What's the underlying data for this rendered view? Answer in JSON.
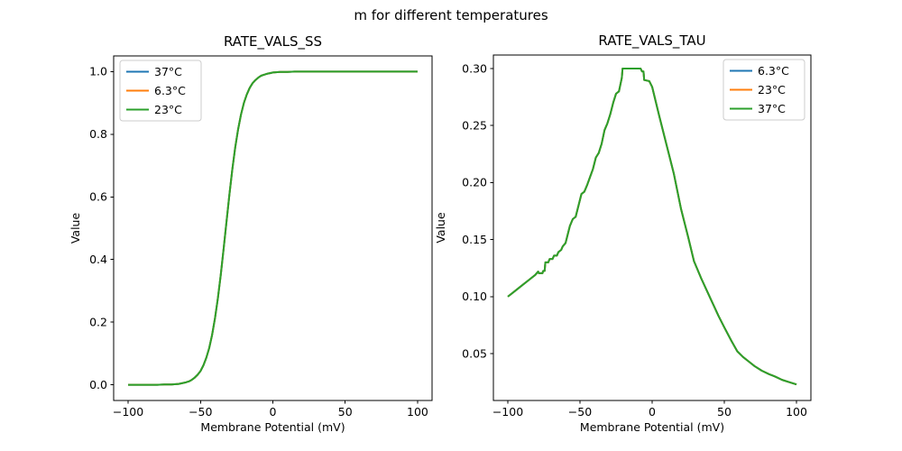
{
  "figure": {
    "suptitle": "m for different temperatures",
    "background_color": "#ffffff",
    "text_color": "#000000"
  },
  "chart_data": [
    {
      "type": "line",
      "title": "RATE_VALS_SS",
      "xlabel": "Membrane Potential (mV)",
      "ylabel": "Value",
      "xlim": [
        -110,
        110
      ],
      "ylim": [
        -0.05,
        1.05
      ],
      "xticks": {
        "values": [
          -100,
          -50,
          0,
          50,
          100
        ],
        "labels": [
          "−100",
          "−50",
          "0",
          "50",
          "100"
        ]
      },
      "yticks": {
        "values": [
          0.0,
          0.2,
          0.4,
          0.6,
          0.8,
          1.0
        ],
        "labels": [
          "0.0",
          "0.2",
          "0.4",
          "0.6",
          "0.8",
          "1.0"
        ]
      },
      "grid": false,
      "legend": {
        "position": "upper-left",
        "entries": [
          {
            "label": "37°C",
            "color": "#1f77b4"
          },
          {
            "label": "6.3°C",
            "color": "#ff7f0e"
          },
          {
            "label": "23°C",
            "color": "#2ca02c"
          }
        ]
      },
      "overlap_note": "all three temperature curves coincide exactly; only the last-drawn green curve is visible",
      "x": [
        -100,
        -95,
        -90,
        -85,
        -80,
        -75,
        -70,
        -65,
        -60,
        -58,
        -56,
        -54,
        -52,
        -50,
        -48,
        -46,
        -44,
        -42,
        -40,
        -38,
        -36,
        -34,
        -32,
        -30,
        -28,
        -26,
        -24,
        -22,
        -20,
        -18,
        -16,
        -14,
        -12,
        -10,
        -8,
        -6,
        -4,
        -2,
        0,
        5,
        10,
        15,
        20,
        30,
        40,
        50,
        60,
        70,
        80,
        90,
        100
      ],
      "y_shared": [
        0.0,
        0.0,
        0.0,
        0.0,
        0.0,
        0.001,
        0.001,
        0.003,
        0.008,
        0.011,
        0.016,
        0.023,
        0.032,
        0.044,
        0.062,
        0.086,
        0.117,
        0.159,
        0.212,
        0.276,
        0.351,
        0.435,
        0.522,
        0.608,
        0.688,
        0.758,
        0.816,
        0.863,
        0.9,
        0.927,
        0.948,
        0.963,
        0.973,
        0.981,
        0.987,
        0.99,
        0.993,
        0.995,
        0.997,
        0.999,
        0.999,
        1.0,
        1.0,
        1.0,
        1.0,
        1.0,
        1.0,
        1.0,
        1.0,
        1.0,
        1.0
      ],
      "series": [
        {
          "name": "37°C",
          "color": "#1f77b4",
          "y": "shared"
        },
        {
          "name": "6.3°C",
          "color": "#ff7f0e",
          "y": "shared"
        },
        {
          "name": "23°C",
          "color": "#2ca02c",
          "y": "shared"
        }
      ]
    },
    {
      "type": "line",
      "title": "RATE_VALS_TAU",
      "xlabel": "Membrane Potential (mV)",
      "ylabel": "Value",
      "xlim": [
        -110,
        110
      ],
      "ylim": [
        0.0089,
        0.3119
      ],
      "xticks": {
        "values": [
          -100,
          -50,
          0,
          50,
          100
        ],
        "labels": [
          "−100",
          "−50",
          "0",
          "50",
          "100"
        ]
      },
      "yticks": {
        "values": [
          0.05,
          0.1,
          0.15,
          0.2,
          0.25,
          0.3
        ],
        "labels": [
          "0.05",
          "0.10",
          "0.15",
          "0.20",
          "0.25",
          "0.30"
        ]
      },
      "grid": false,
      "legend": {
        "position": "upper-right",
        "entries": [
          {
            "label": "6.3°C",
            "color": "#1f77b4"
          },
          {
            "label": "23°C",
            "color": "#ff7f0e"
          },
          {
            "label": "37°C",
            "color": "#2ca02c"
          }
        ]
      },
      "overlap_note": "all three temperature curves coincide exactly; only the last-drawn green curve is visible",
      "x": [
        -100,
        -95,
        -90,
        -85,
        -81,
        -79,
        -78.5,
        -76,
        -75.5,
        -74.5,
        -74,
        -72,
        -71,
        -69,
        -68,
        -66,
        -65,
        -63,
        -62,
        -60,
        -59,
        -57,
        -55,
        -53,
        -51,
        -49,
        -47,
        -45,
        -43,
        -41,
        -39,
        -37,
        -35,
        -33,
        -31,
        -29,
        -27,
        -25,
        -23,
        -21,
        -20.5,
        -8,
        -7,
        -6,
        -5.5,
        -2,
        0,
        5,
        10,
        15,
        20,
        25,
        29,
        34,
        38,
        42,
        46,
        50,
        55,
        59,
        63,
        67,
        71,
        76,
        81,
        85,
        90,
        95,
        100
      ],
      "y_shared": [
        0.1,
        0.105,
        0.11,
        0.115,
        0.119,
        0.122,
        0.1205,
        0.1205,
        0.1225,
        0.1225,
        0.13,
        0.13,
        0.133,
        0.133,
        0.136,
        0.136,
        0.139,
        0.141,
        0.144,
        0.147,
        0.152,
        0.162,
        0.168,
        0.17,
        0.18,
        0.19,
        0.192,
        0.198,
        0.205,
        0.212,
        0.222,
        0.226,
        0.234,
        0.246,
        0.252,
        0.26,
        0.27,
        0.278,
        0.28,
        0.292,
        0.3,
        0.3,
        0.2975,
        0.2975,
        0.29,
        0.289,
        0.284,
        0.258,
        0.233,
        0.208,
        0.177,
        0.152,
        0.131,
        0.116,
        0.105,
        0.094,
        0.083,
        0.073,
        0.061,
        0.052,
        0.047,
        0.043,
        0.039,
        0.035,
        0.032,
        0.03,
        0.027,
        0.025,
        0.023
      ],
      "series": [
        {
          "name": "6.3°C",
          "color": "#1f77b4",
          "y": "shared"
        },
        {
          "name": "23°C",
          "color": "#ff7f0e",
          "y": "shared"
        },
        {
          "name": "37°C",
          "color": "#2ca02c",
          "y": "shared"
        }
      ]
    }
  ]
}
